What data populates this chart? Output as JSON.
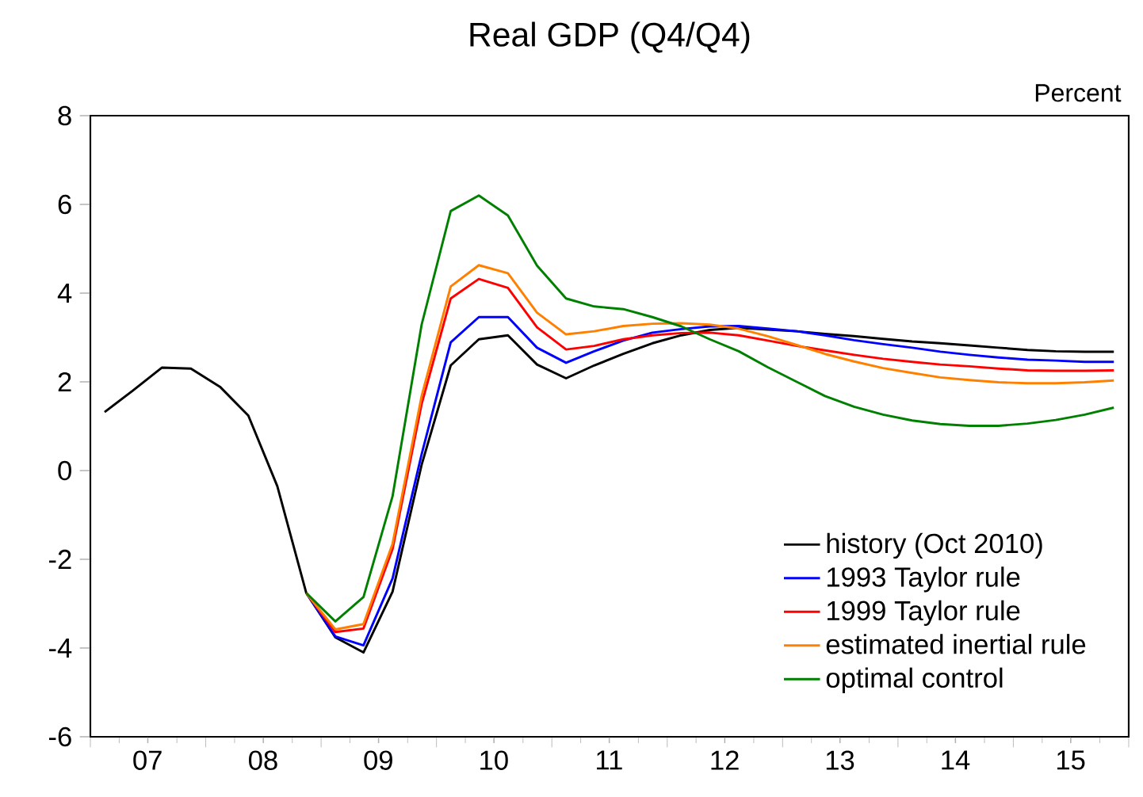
{
  "chart_data": {
    "type": "line",
    "title": "Real GDP (Q4/Q4)",
    "ylabel": "Percent",
    "xlim": [
      "2007-01-01",
      "2016-01-01"
    ],
    "ylim": [
      -6,
      8
    ],
    "xticks": [
      {
        "value": "2007-01-01",
        "label": null
      },
      {
        "value": "2008-01-01",
        "label": null
      },
      {
        "value": "2009-01-01",
        "label": null
      },
      {
        "value": "2010-01-01",
        "label": null
      },
      {
        "value": "2011-01-01",
        "label": null
      },
      {
        "value": "2012-01-01",
        "label": null
      },
      {
        "value": "2013-01-01",
        "label": null
      },
      {
        "value": "2014-01-01",
        "label": null
      },
      {
        "value": "2015-01-01",
        "label": null
      },
      {
        "value": "2016-01-01",
        "label": null
      },
      {
        "value": "2007-07-01",
        "label": "07"
      },
      {
        "value": "2008-07-01",
        "label": "08"
      },
      {
        "value": "2009-07-01",
        "label": "09"
      },
      {
        "value": "2010-07-01",
        "label": "10"
      },
      {
        "value": "2011-07-01",
        "label": "11"
      },
      {
        "value": "2012-07-01",
        "label": "12"
      },
      {
        "value": "2013-07-01",
        "label": "13"
      },
      {
        "value": "2014-07-01",
        "label": "14"
      },
      {
        "value": "2015-07-01",
        "label": "15"
      }
    ],
    "yticks": [
      {
        "value": -6,
        "label": "-6"
      },
      {
        "value": -4,
        "label": "-4"
      },
      {
        "value": -2,
        "label": "-2"
      },
      0,
      2,
      4,
      6,
      8
    ],
    "legend": "bottom right",
    "series": [
      {
        "name": "history (Oct 2010)",
        "color": "#000000",
        "x": [
          "2007-02-15",
          "2007-05-15",
          "2007-08-15",
          "2007-11-15",
          "2008-02-15",
          "2008-05-15",
          "2008-08-15",
          "2008-11-15",
          "2009-02-15",
          "2009-05-15",
          "2009-08-15",
          "2009-11-15",
          "2010-02-15",
          "2010-05-15",
          "2010-08-15",
          "2010-11-15",
          "2011-02-15",
          "2011-05-15",
          "2011-08-15",
          "2011-11-15",
          "2012-02-15",
          "2012-05-15",
          "2012-08-15",
          "2012-11-15",
          "2013-02-15",
          "2013-05-15",
          "2013-08-15",
          "2013-11-15",
          "2014-02-15",
          "2014-05-15",
          "2014-08-15",
          "2014-11-15",
          "2015-02-15",
          "2015-05-15",
          "2015-08-15",
          "2015-11-15"
        ],
        "values": [
          1.32,
          1.8,
          2.32,
          2.3,
          1.89,
          1.24,
          -0.35,
          -2.76,
          -3.76,
          -4.1,
          -2.73,
          0.13,
          2.37,
          2.96,
          3.05,
          2.39,
          2.08,
          2.37,
          2.63,
          2.87,
          3.05,
          3.17,
          3.22,
          3.18,
          3.14,
          3.08,
          3.03,
          2.97,
          2.91,
          2.87,
          2.82,
          2.77,
          2.72,
          2.69,
          2.68,
          2.68
        ]
      },
      {
        "name": "1993 Taylor rule",
        "color": "#0000ff",
        "x": [
          "2008-11-15",
          "2009-02-15",
          "2009-05-15",
          "2009-08-15",
          "2009-11-15",
          "2010-02-15",
          "2010-05-15",
          "2010-08-15",
          "2010-11-15",
          "2011-02-15",
          "2011-05-15",
          "2011-08-15",
          "2011-11-15",
          "2012-02-15",
          "2012-05-15",
          "2012-08-15",
          "2012-11-15",
          "2013-02-15",
          "2013-05-15",
          "2013-08-15",
          "2013-11-15",
          "2014-02-15",
          "2014-05-15",
          "2014-08-15",
          "2014-11-15",
          "2015-02-15",
          "2015-05-15",
          "2015-08-15",
          "2015-11-15"
        ],
        "values": [
          -2.76,
          -3.74,
          -3.94,
          -2.43,
          0.37,
          2.89,
          3.46,
          3.46,
          2.77,
          2.43,
          2.69,
          2.93,
          3.11,
          3.19,
          3.25,
          3.26,
          3.2,
          3.14,
          3.05,
          2.94,
          2.85,
          2.77,
          2.68,
          2.61,
          2.55,
          2.5,
          2.48,
          2.45,
          2.45
        ]
      },
      {
        "name": "1999 Taylor rule",
        "color": "#ff0000",
        "x": [
          "2008-11-15",
          "2009-02-15",
          "2009-05-15",
          "2009-08-15",
          "2009-11-15",
          "2010-02-15",
          "2010-05-15",
          "2010-08-15",
          "2010-11-15",
          "2011-02-15",
          "2011-05-15",
          "2011-08-15",
          "2011-11-15",
          "2012-02-15",
          "2012-05-15",
          "2012-08-15",
          "2012-11-15",
          "2013-02-15",
          "2013-05-15",
          "2013-08-15",
          "2013-11-15",
          "2014-02-15",
          "2014-05-15",
          "2014-08-15",
          "2014-11-15",
          "2015-02-15",
          "2015-05-15",
          "2015-08-15",
          "2015-11-15"
        ],
        "values": [
          -2.76,
          -3.64,
          -3.56,
          -1.77,
          1.5,
          3.88,
          4.32,
          4.12,
          3.23,
          2.73,
          2.81,
          2.96,
          3.05,
          3.1,
          3.11,
          3.05,
          2.93,
          2.81,
          2.71,
          2.61,
          2.52,
          2.45,
          2.39,
          2.35,
          2.3,
          2.26,
          2.25,
          2.25,
          2.26
        ]
      },
      {
        "name": "estimated inertial rule",
        "color": "#ff8000",
        "x": [
          "2008-11-15",
          "2009-02-15",
          "2009-05-15",
          "2009-08-15",
          "2009-11-15",
          "2010-02-15",
          "2010-05-15",
          "2010-08-15",
          "2010-11-15",
          "2011-02-15",
          "2011-05-15",
          "2011-08-15",
          "2011-11-15",
          "2012-02-15",
          "2012-05-15",
          "2012-08-15",
          "2012-11-15",
          "2013-02-15",
          "2013-05-15",
          "2013-08-15",
          "2013-11-15",
          "2014-02-15",
          "2014-05-15",
          "2014-08-15",
          "2014-11-15",
          "2015-02-15",
          "2015-05-15",
          "2015-08-15",
          "2015-11-15"
        ],
        "values": [
          -2.76,
          -3.58,
          -3.46,
          -1.65,
          1.68,
          4.15,
          4.63,
          4.45,
          3.56,
          3.07,
          3.14,
          3.26,
          3.31,
          3.32,
          3.29,
          3.2,
          3.03,
          2.83,
          2.63,
          2.46,
          2.31,
          2.2,
          2.1,
          2.04,
          1.99,
          1.97,
          1.97,
          1.99,
          2.03
        ]
      },
      {
        "name": "optimal control",
        "color": "#008000",
        "x": [
          "2008-11-15",
          "2009-02-15",
          "2009-05-15",
          "2009-08-15",
          "2009-11-15",
          "2010-02-15",
          "2010-05-15",
          "2010-08-15",
          "2010-11-15",
          "2011-02-15",
          "2011-05-15",
          "2011-08-15",
          "2011-11-15",
          "2012-02-15",
          "2012-05-15",
          "2012-08-15",
          "2012-11-15",
          "2013-02-15",
          "2013-05-15",
          "2013-08-15",
          "2013-11-15",
          "2014-02-15",
          "2014-05-15",
          "2014-08-15",
          "2014-11-15",
          "2015-02-15",
          "2015-05-15",
          "2015-08-15",
          "2015-11-15"
        ],
        "values": [
          -2.76,
          -3.4,
          -2.85,
          -0.58,
          3.29,
          5.85,
          6.2,
          5.75,
          4.62,
          3.88,
          3.7,
          3.64,
          3.46,
          3.25,
          2.96,
          2.69,
          2.33,
          2.0,
          1.68,
          1.44,
          1.26,
          1.13,
          1.05,
          1.01,
          1.01,
          1.06,
          1.14,
          1.26,
          1.42
        ]
      }
    ]
  }
}
